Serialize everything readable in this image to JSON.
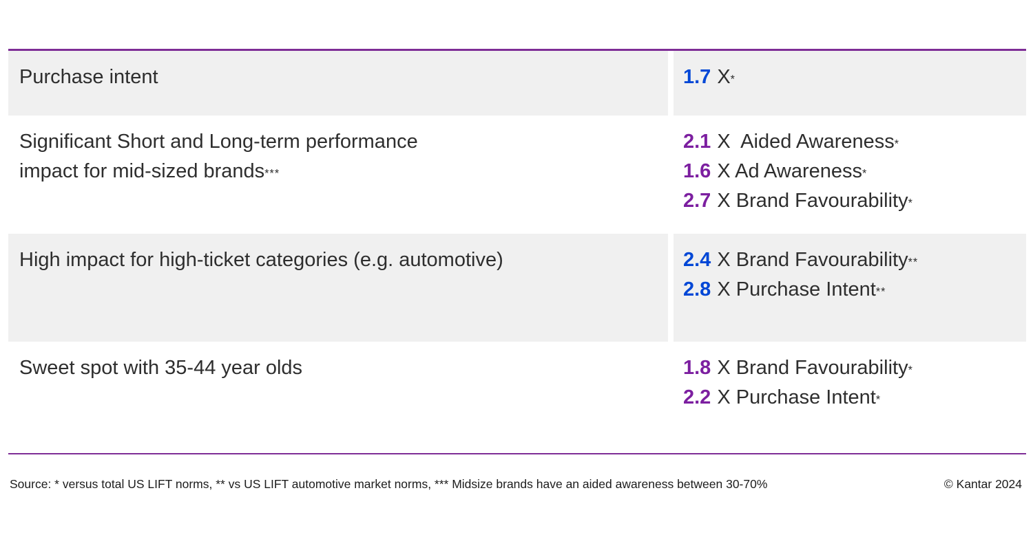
{
  "colors": {
    "rule": "#7e2d96",
    "blue": "#0047d6",
    "purple": "#7c1fa0",
    "row_shade": "#f0f0f0",
    "text": "#2e2e2e"
  },
  "rows": [
    {
      "label": "Purchase intent",
      "label_stars": "",
      "value_color": "#0047d6",
      "metrics": [
        {
          "value": "1.7",
          "label": "X",
          "stars": "*"
        }
      ]
    },
    {
      "label": "Significant Short and Long-term performance\nimpact for mid-sized brands",
      "label_stars": "***",
      "value_color": "#7c1fa0",
      "metrics": [
        {
          "value": "2.1",
          "label": "X  Aided Awareness",
          "stars": "*"
        },
        {
          "value": "1.6",
          "label": "X Ad Awareness",
          "stars": "*"
        },
        {
          "value": "2.7",
          "label": "X Brand Favourability",
          "stars": "*"
        }
      ]
    },
    {
      "label": "High impact for high-ticket categories (e.g. automotive)",
      "label_stars": "",
      "value_color": "#0047d6",
      "metrics": [
        {
          "value": "2.4",
          "label": "X Brand Favourability",
          "stars": "**"
        },
        {
          "value": "2.8",
          "label": "X Purchase Intent",
          "stars": "**"
        }
      ]
    },
    {
      "label": "Sweet spot with 35-44 year olds",
      "label_stars": "",
      "value_color": "#7c1fa0",
      "metrics": [
        {
          "value": "1.8",
          "label": "X Brand Favourability",
          "stars": "*"
        },
        {
          "value": "2.2",
          "label": "X Purchase Intent",
          "stars": "*"
        }
      ]
    }
  ],
  "footer": {
    "source": "Source: * versus total US LIFT norms, ** vs US LIFT automotive market norms, *** Midsize brands have an aided awareness between 30-70%",
    "copyright": "© Kantar 2024"
  }
}
